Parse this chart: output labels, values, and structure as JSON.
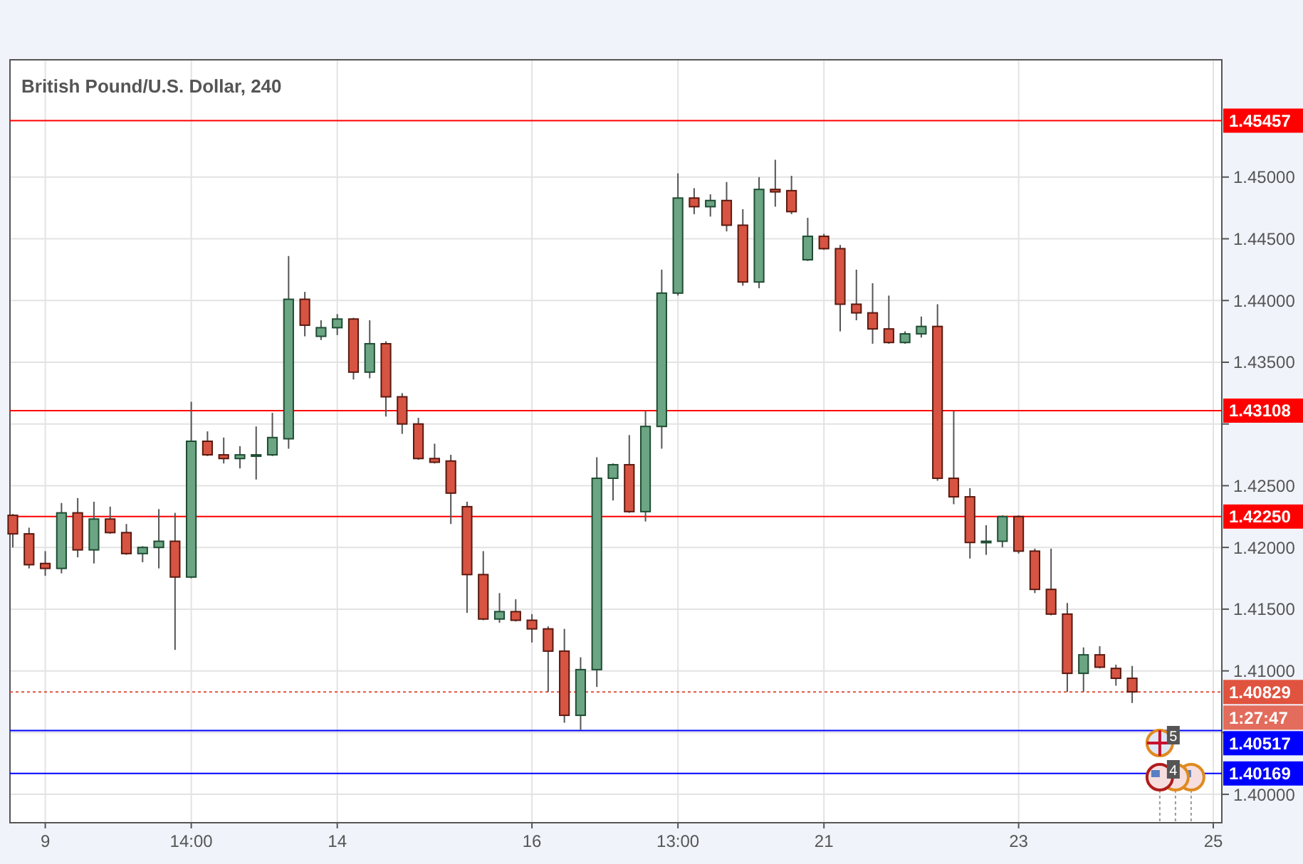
{
  "chart_data": {
    "type": "candlestick",
    "title": "British Pound/U.S. Dollar, 240",
    "categories": [
      null,
      null,
      "9",
      null,
      null,
      null,
      null,
      null,
      null,
      null,
      null,
      "14:00",
      null,
      null,
      null,
      null,
      null,
      null,
      null,
      null,
      "14",
      null,
      null,
      null,
      null,
      null,
      null,
      null,
      null,
      null,
      null,
      null,
      "16",
      null,
      null,
      null,
      null,
      null,
      null,
      null,
      null,
      "13:00",
      null,
      null,
      null,
      null,
      null,
      null,
      null,
      null,
      "21",
      null,
      null,
      null,
      null,
      null,
      null,
      null,
      null,
      null,
      null,
      null,
      "23",
      null,
      null,
      null,
      null,
      null,
      null,
      null,
      null,
      null,
      null,
      null,
      "25"
    ],
    "ohlc": [
      [
        1.4226,
        1.4227,
        1.42,
        1.4211
      ],
      [
        1.4211,
        1.4216,
        1.4183,
        1.4186
      ],
      [
        1.4187,
        1.4197,
        1.4177,
        1.4183
      ],
      [
        1.4183,
        1.4236,
        1.4179,
        1.4228
      ],
      [
        1.4228,
        1.424,
        1.4192,
        1.4198
      ],
      [
        1.4198,
        1.4237,
        1.4187,
        1.4223
      ],
      [
        1.4223,
        1.4233,
        1.4211,
        1.4212
      ],
      [
        1.4212,
        1.4219,
        1.4194,
        1.4195
      ],
      [
        1.4195,
        1.4201,
        1.4188,
        1.42
      ],
      [
        1.42,
        1.4231,
        1.4183,
        1.4205
      ],
      [
        1.4205,
        1.4228,
        1.4117,
        1.4176
      ],
      [
        1.4176,
        1.4318,
        1.4175,
        1.4286
      ],
      [
        1.4286,
        1.4294,
        1.4274,
        1.4275
      ],
      [
        1.4275,
        1.4289,
        1.4268,
        1.4272
      ],
      [
        1.4272,
        1.4282,
        1.4264,
        1.4275
      ],
      [
        1.4274,
        1.4298,
        1.4255,
        1.4275
      ],
      [
        1.4275,
        1.4309,
        1.4274,
        1.4289
      ],
      [
        1.4288,
        1.4436,
        1.428,
        1.4401
      ],
      [
        1.4401,
        1.4407,
        1.4371,
        1.438
      ],
      [
        1.4371,
        1.4384,
        1.4368,
        1.4378
      ],
      [
        1.4378,
        1.4389,
        1.4372,
        1.4385
      ],
      [
        1.4385,
        1.4386,
        1.4336,
        1.4342
      ],
      [
        1.4342,
        1.4384,
        1.4337,
        1.4365
      ],
      [
        1.4365,
        1.4367,
        1.4306,
        1.4322
      ],
      [
        1.4322,
        1.4325,
        1.4292,
        1.43
      ],
      [
        1.43,
        1.4305,
        1.4271,
        1.4272
      ],
      [
        1.4272,
        1.4284,
        1.4268,
        1.4269
      ],
      [
        1.427,
        1.4275,
        1.4219,
        1.4244
      ],
      [
        1.4233,
        1.4237,
        1.4147,
        1.4178
      ],
      [
        1.4178,
        1.4197,
        1.4141,
        1.4142
      ],
      [
        1.4142,
        1.4163,
        1.4139,
        1.4148
      ],
      [
        1.4148,
        1.4158,
        1.414,
        1.4141
      ],
      [
        1.4141,
        1.4146,
        1.4123,
        1.4134
      ],
      [
        1.4134,
        1.4136,
        1.4083,
        1.4116
      ],
      [
        1.4116,
        1.4134,
        1.4058,
        1.4064
      ],
      [
        1.4064,
        1.4111,
        1.4052,
        1.4101
      ],
      [
        1.4101,
        1.4273,
        1.4087,
        1.4256
      ],
      [
        1.4256,
        1.4268,
        1.4238,
        1.4267
      ],
      [
        1.4267,
        1.4291,
        1.4228,
        1.4229
      ],
      [
        1.4229,
        1.4311,
        1.4221,
        1.4298
      ],
      [
        1.4298,
        1.4425,
        1.428,
        1.4406
      ],
      [
        1.4406,
        1.4503,
        1.4404,
        1.4483
      ],
      [
        1.4483,
        1.4491,
        1.447,
        1.4476
      ],
      [
        1.4476,
        1.4486,
        1.4468,
        1.4481
      ],
      [
        1.4481,
        1.4496,
        1.4456,
        1.4461
      ],
      [
        1.4461,
        1.4474,
        1.4412,
        1.4415
      ],
      [
        1.4415,
        1.45,
        1.441,
        1.449
      ],
      [
        1.449,
        1.4514,
        1.4476,
        1.4488
      ],
      [
        1.4489,
        1.4501,
        1.447,
        1.4472
      ],
      [
        1.4433,
        1.4467,
        1.4432,
        1.4452
      ],
      [
        1.4452,
        1.4454,
        1.4441,
        1.4442
      ],
      [
        1.4442,
        1.4445,
        1.4375,
        1.4397
      ],
      [
        1.4397,
        1.4425,
        1.4384,
        1.439
      ],
      [
        1.439,
        1.4414,
        1.4365,
        1.4377
      ],
      [
        1.4377,
        1.4404,
        1.4365,
        1.4366
      ],
      [
        1.4366,
        1.4375,
        1.4365,
        1.4373
      ],
      [
        1.4373,
        1.4387,
        1.437,
        1.4379
      ],
      [
        1.4379,
        1.4397,
        1.4254,
        1.4256
      ],
      [
        1.4256,
        1.4311,
        1.4235,
        1.4241
      ],
      [
        1.4241,
        1.4248,
        1.4191,
        1.4204
      ],
      [
        1.4204,
        1.4218,
        1.4194,
        1.4205
      ],
      [
        1.4205,
        1.4226,
        1.42,
        1.4225
      ],
      [
        1.4225,
        1.4226,
        1.4195,
        1.4197
      ],
      [
        1.4197,
        1.4199,
        1.4163,
        1.4166
      ],
      [
        1.4166,
        1.4199,
        1.4145,
        1.4146
      ],
      [
        1.4146,
        1.4155,
        1.4083,
        1.4098
      ],
      [
        1.4098,
        1.4119,
        1.4083,
        1.4113
      ],
      [
        1.4113,
        1.412,
        1.4102,
        1.4103
      ],
      [
        1.4102,
        1.4105,
        1.4088,
        1.4094
      ],
      [
        1.4094,
        1.4104,
        1.4074,
        1.4083
      ],
      null,
      null,
      null,
      null,
      null
    ],
    "ylim": [
      1.3977,
      1.4595
    ],
    "yticks": [
      {
        "value": 1.4,
        "label": "1.40000"
      },
      {
        "value": 1.405,
        "label": null
      },
      {
        "value": 1.41,
        "label": "1.41000"
      },
      {
        "value": 1.415,
        "label": "1.41500"
      },
      {
        "value": 1.42,
        "label": "1.42000"
      },
      {
        "value": 1.425,
        "label": "1.42500"
      },
      {
        "value": 1.43,
        "label": null
      },
      {
        "value": 1.435,
        "label": "1.43500"
      },
      {
        "value": 1.44,
        "label": "1.44000"
      },
      {
        "value": 1.445,
        "label": "1.44500"
      },
      {
        "value": 1.45,
        "label": "1.45000"
      }
    ],
    "grid": true,
    "ref_lines": [
      {
        "axis": "y",
        "value": 1.45457,
        "label": "1.45457",
        "color": "#ff0000",
        "line_style": "solid"
      },
      {
        "axis": "y",
        "value": 1.43108,
        "label": "1.43108",
        "color": "#ff0000",
        "line_style": "solid"
      },
      {
        "axis": "y",
        "value": 1.4225,
        "label": "1.42250",
        "color": "#ff0000",
        "line_style": "solid"
      },
      {
        "axis": "y",
        "value": 1.40829,
        "label": "1.40829",
        "color": "#e0533f",
        "line_style": "dotted"
      },
      {
        "axis": "y",
        "value": 1.40517,
        "label": "1.40517",
        "color": "#0000ff",
        "line_style": "solid"
      },
      {
        "axis": "y",
        "value": 1.40169,
        "label": "1.40169",
        "color": "#0000ff",
        "line_style": "solid"
      }
    ],
    "annotations": [
      "1:27:47",
      "5",
      "4"
    ]
  }
}
